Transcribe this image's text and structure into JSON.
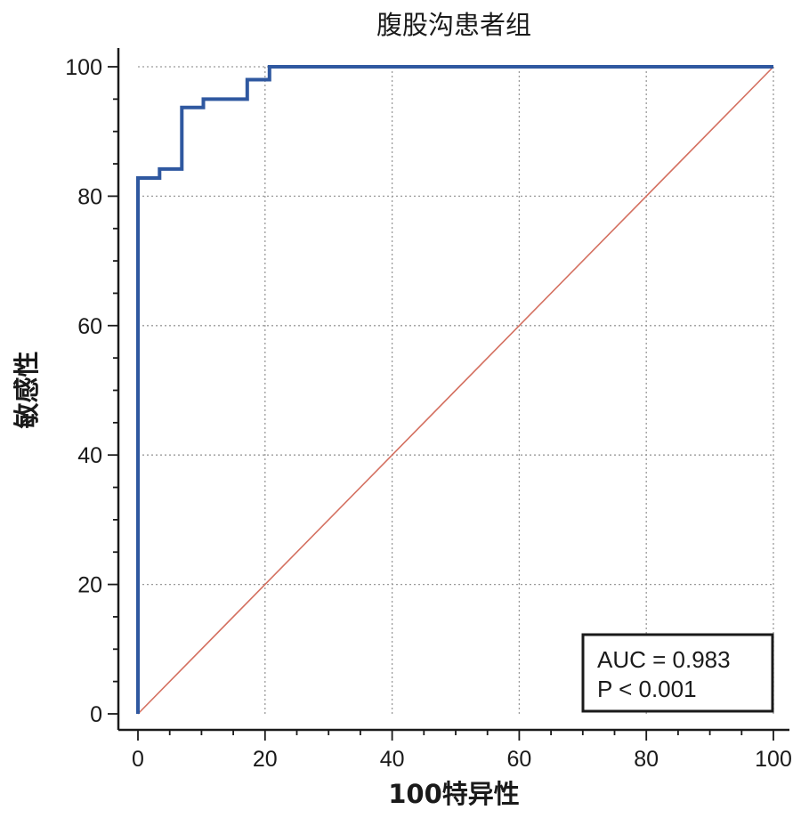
{
  "chart_data": {
    "type": "line",
    "title": "腹股沟患者组",
    "xlabel": "100特异性",
    "ylabel": "敏感性",
    "xlim": [
      0,
      100
    ],
    "ylim": [
      0,
      100
    ],
    "x_ticks": [
      0,
      20,
      40,
      60,
      80,
      100
    ],
    "y_ticks": [
      0,
      20,
      40,
      60,
      80,
      100
    ],
    "grid": true,
    "series": [
      {
        "color": "#2f58a0",
        "step": true,
        "x": [
          0,
          0,
          3.4,
          3.4,
          6.9,
          6.9,
          10.3,
          10.3,
          17.2,
          17.2,
          20.7,
          20.7,
          100
        ],
        "y": [
          0,
          82.8,
          82.8,
          84.2,
          84.2,
          93.7,
          93.7,
          95.0,
          95.0,
          98.0,
          98.0,
          100,
          100
        ]
      },
      {
        "color": "#d47060",
        "x": [
          0,
          100
        ],
        "y": [
          0,
          100
        ]
      }
    ],
    "annotations": {
      "auc": "AUC = 0.983",
      "p": "P < 0.001"
    }
  }
}
